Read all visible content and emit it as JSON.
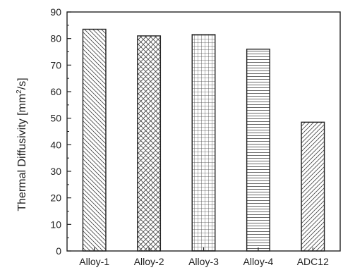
{
  "chart_data": {
    "type": "bar",
    "title": "",
    "xlabel": "",
    "ylabel": {
      "text_before": "Thermal Diffusivity [mm",
      "superscript": "2",
      "text_after": "/s]"
    },
    "categories": [
      "Alloy-1",
      "Alloy-2",
      "Alloy-3",
      "Alloy-4",
      "ADC12"
    ],
    "values": [
      83.5,
      81,
      81.5,
      76,
      48.5
    ],
    "ylim": [
      0,
      90
    ],
    "yticks": [
      "0",
      "10",
      "20",
      "30",
      "40",
      "50",
      "60",
      "70",
      "80",
      "90"
    ],
    "patterns": [
      "diagonal-back",
      "cross-hatch",
      "grid",
      "horizontal",
      "diagonal-forward"
    ],
    "grid": false,
    "legend": "none",
    "colors": {
      "axis": "#222222",
      "bar_fill": "#ffffff",
      "hatch": "#444444"
    }
  }
}
